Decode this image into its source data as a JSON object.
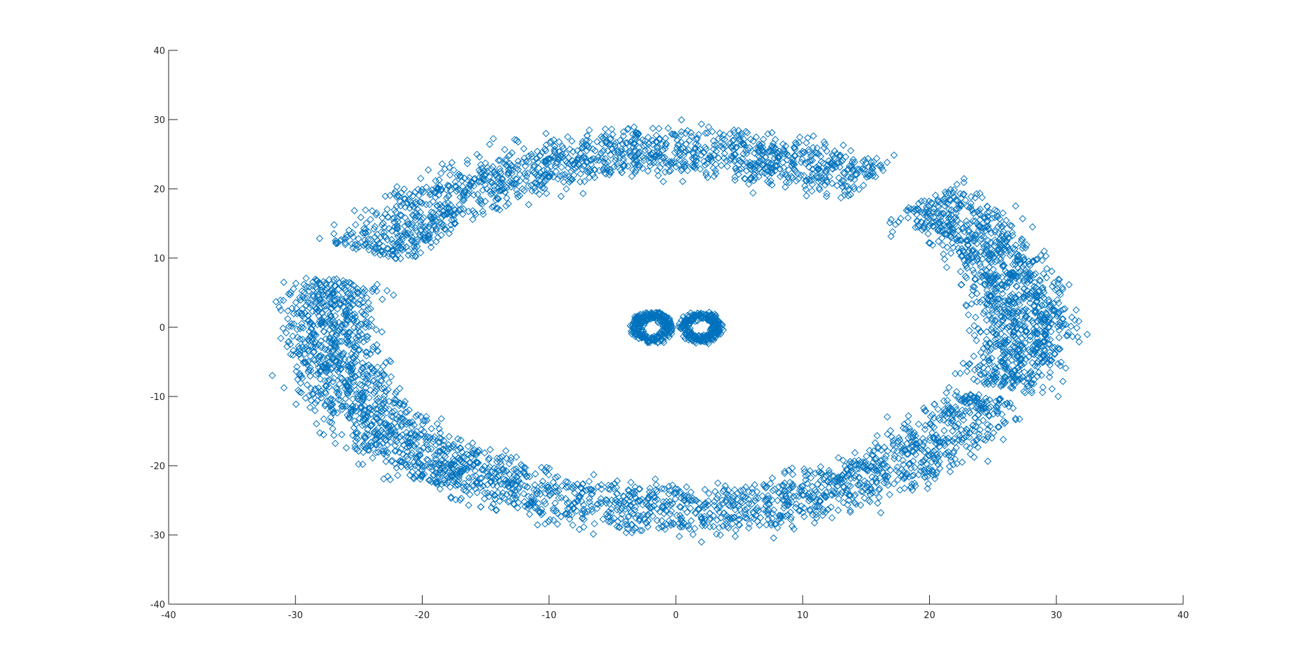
{
  "chart_data": {
    "type": "scatter",
    "title": "",
    "xlabel": "",
    "ylabel": "",
    "xlim": [
      -40,
      40
    ],
    "ylim": [
      -40,
      40
    ],
    "xticks": [
      -40,
      -30,
      -20,
      -10,
      0,
      10,
      20,
      30,
      40
    ],
    "yticks": [
      -40,
      -30,
      -20,
      -10,
      0,
      10,
      20,
      30,
      40
    ],
    "xtick_labels": [
      "-40",
      "-30",
      "-20",
      "-10",
      "0",
      "10",
      "20",
      "30",
      "40"
    ],
    "ytick_labels": [
      "-40",
      "-30",
      "-20",
      "-10",
      "0",
      "10",
      "20",
      "30",
      "40"
    ],
    "grid": false,
    "marker": "diamond",
    "color": "#0072BD",
    "series": [
      {
        "clusters": [
          {
            "region": "top-arc",
            "count": 1400,
            "angle_range_deg": [
              55,
              155
            ],
            "rx": 26.5,
            "ry": 25.5,
            "spread": 2.0
          },
          {
            "region": "bottom-arc",
            "count": 1400,
            "angle_range_deg": [
              228,
              338
            ],
            "rx": 26.5,
            "ry": 26.5,
            "spread": 2.0
          },
          {
            "region": "left-arc",
            "count": 1100,
            "angle_range_deg": [
              165,
              232
            ],
            "rx": 27.5,
            "ry": 27.0,
            "spread": 2.0
          },
          {
            "region": "right-arc",
            "count": 1100,
            "angle_range_deg": [
              -20,
              45
            ],
            "rx": 27.5,
            "ry": 26.0,
            "spread": 2.0
          },
          {
            "region": "center-left",
            "count": 300,
            "cx": -1.9,
            "cy": 0,
            "r": 1.8,
            "spread": 0.5
          },
          {
            "region": "center-right",
            "count": 300,
            "cx": 2.0,
            "cy": 0,
            "r": 1.8,
            "spread": 0.5
          }
        ]
      }
    ]
  }
}
